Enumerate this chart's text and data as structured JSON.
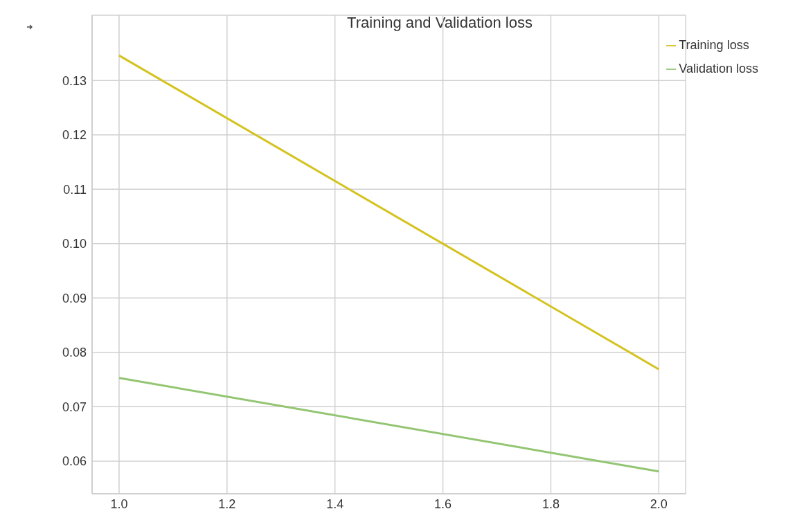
{
  "chart_data": {
    "type": "line",
    "title": "Training and Validation loss",
    "x": [
      1.0,
      2.0
    ],
    "series": [
      {
        "name": "Training loss",
        "color": "#d4c21e",
        "values": [
          0.1346,
          0.0769
        ]
      },
      {
        "name": "Validation loss",
        "color": "#93c572",
        "values": [
          0.0753,
          0.0581
        ]
      }
    ],
    "xlim": [
      0.95,
      2.05
    ],
    "xticks": [
      {
        "value": 1.0,
        "label": "1.0"
      },
      {
        "value": 1.2,
        "label": "1.2"
      },
      {
        "value": 1.4,
        "label": "1.4"
      },
      {
        "value": 1.6,
        "label": "1.6"
      },
      {
        "value": 1.8,
        "label": "1.8"
      },
      {
        "value": 2.0,
        "label": "2.0"
      }
    ],
    "ylim": [
      0.054,
      0.142
    ],
    "yticks": [
      0.06,
      0.07,
      0.08,
      0.09,
      {
        "value": 0.1,
        "label": "0.10"
      },
      0.11,
      0.12,
      0.13
    ],
    "grid": true,
    "legend": "top right",
    "marker": "none",
    "line_style": "solid"
  }
}
